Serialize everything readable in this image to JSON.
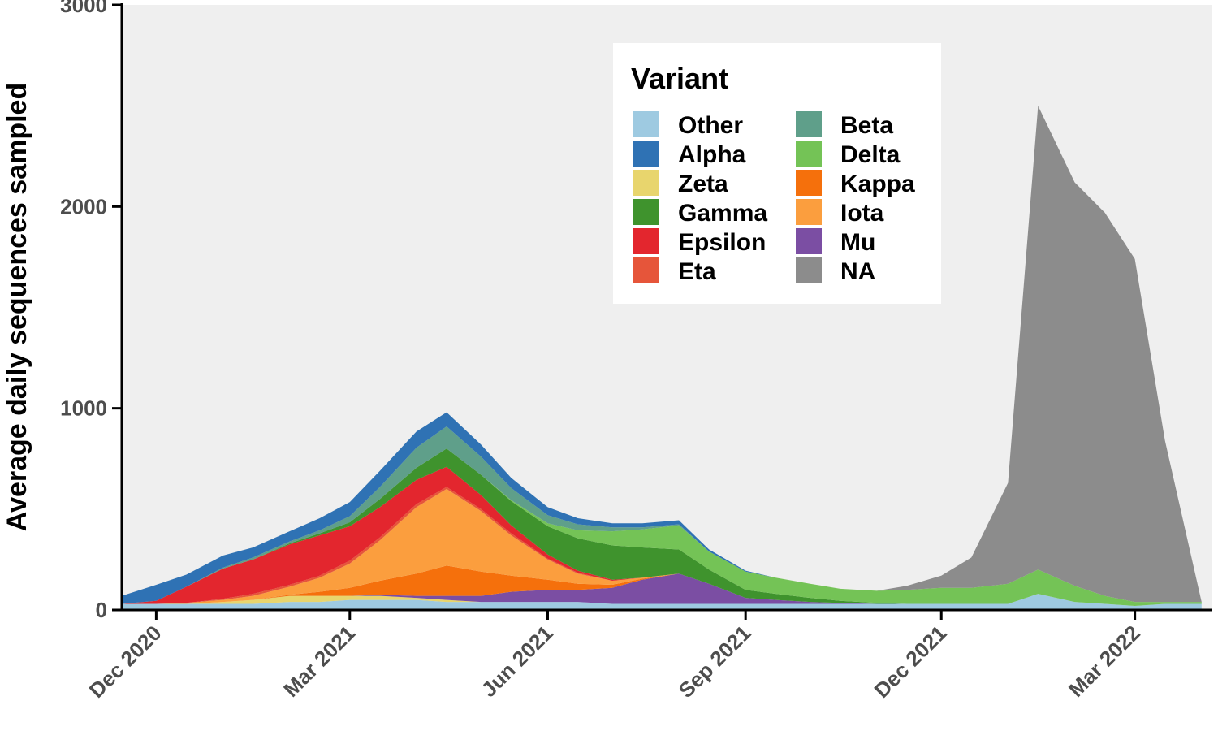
{
  "chart_data": {
    "type": "area",
    "stacked": true,
    "title": "",
    "xlabel": "",
    "ylabel": "Average daily sequences sampled",
    "ylim": [
      0,
      3000
    ],
    "xlim": [
      "2020-11-15",
      "2022-04-06"
    ],
    "grid": false,
    "background": "#efefef",
    "legend": {
      "title": "Variant",
      "position": "top-center",
      "columns": 2
    },
    "y_ticks": [
      {
        "value": 0,
        "label": "0"
      },
      {
        "value": 1000,
        "label": "1000"
      },
      {
        "value": 2000,
        "label": "2000"
      },
      {
        "value": 3000,
        "label": "3000"
      }
    ],
    "x_ticks": [
      {
        "date": "2020-12-01",
        "label": "Dec 2020"
      },
      {
        "date": "2021-03-01",
        "label": "Mar 2021"
      },
      {
        "date": "2021-06-01",
        "label": "Jun 2021"
      },
      {
        "date": "2021-09-01",
        "label": "Sep 2021"
      },
      {
        "date": "2021-12-01",
        "label": "Dec 2021"
      },
      {
        "date": "2022-03-01",
        "label": "Mar 2022"
      }
    ],
    "x": [
      "2020-11-15",
      "2020-12-01",
      "2020-12-15",
      "2021-01-01",
      "2021-01-15",
      "2021-02-01",
      "2021-02-15",
      "2021-03-01",
      "2021-03-15",
      "2021-04-01",
      "2021-04-15",
      "2021-05-01",
      "2021-05-15",
      "2021-06-01",
      "2021-06-15",
      "2021-07-01",
      "2021-07-15",
      "2021-08-01",
      "2021-08-15",
      "2021-09-01",
      "2021-09-15",
      "2021-10-01",
      "2021-10-15",
      "2021-11-01",
      "2021-11-15",
      "2021-12-01",
      "2021-12-15",
      "2022-01-01",
      "2022-01-15",
      "2022-02-01",
      "2022-02-15",
      "2022-03-01",
      "2022-03-15",
      "2022-04-01"
    ],
    "series": [
      {
        "name": "Other",
        "color": "#9ecae1",
        "values": [
          30,
          30,
          30,
          30,
          30,
          40,
          40,
          50,
          50,
          50,
          40,
          40,
          40,
          40,
          40,
          30,
          30,
          30,
          30,
          30,
          30,
          30,
          30,
          30,
          30,
          30,
          30,
          30,
          80,
          40,
          30,
          20,
          30,
          30
        ]
      },
      {
        "name": "Zeta",
        "color": "#e8d56d",
        "values": [
          0,
          0,
          0,
          10,
          20,
          30,
          30,
          20,
          20,
          10,
          10,
          0,
          0,
          0,
          0,
          0,
          0,
          0,
          0,
          0,
          0,
          0,
          0,
          0,
          0,
          0,
          0,
          0,
          0,
          0,
          0,
          0,
          0,
          0
        ]
      },
      {
        "name": "Mu",
        "color": "#7b4ea3",
        "values": [
          0,
          0,
          0,
          0,
          0,
          0,
          0,
          0,
          5,
          10,
          20,
          30,
          50,
          60,
          60,
          80,
          120,
          150,
          100,
          30,
          20,
          10,
          5,
          0,
          0,
          0,
          0,
          0,
          0,
          0,
          0,
          0,
          0,
          0
        ]
      },
      {
        "name": "Kappa",
        "color": "#f5700c",
        "values": [
          0,
          0,
          0,
          0,
          0,
          5,
          20,
          40,
          70,
          110,
          150,
          120,
          80,
          50,
          30,
          15,
          5,
          0,
          0,
          0,
          0,
          0,
          0,
          0,
          0,
          0,
          0,
          0,
          0,
          0,
          0,
          0,
          0,
          0
        ]
      },
      {
        "name": "Iota",
        "color": "#fb9e3e",
        "values": [
          0,
          0,
          5,
          10,
          20,
          40,
          70,
          120,
          200,
          330,
          380,
          300,
          200,
          100,
          50,
          20,
          5,
          0,
          0,
          0,
          0,
          0,
          0,
          0,
          0,
          0,
          0,
          0,
          0,
          0,
          0,
          0,
          0,
          0
        ]
      },
      {
        "name": "Eta",
        "color": "#e6553a",
        "values": [
          0,
          0,
          0,
          5,
          10,
          10,
          10,
          15,
          15,
          15,
          10,
          10,
          10,
          5,
          5,
          0,
          0,
          0,
          0,
          0,
          0,
          0,
          0,
          0,
          0,
          0,
          0,
          0,
          0,
          0,
          0,
          0,
          0,
          0
        ]
      },
      {
        "name": "Epsilon",
        "color": "#e3262e",
        "values": [
          0,
          15,
          80,
          150,
          170,
          200,
          200,
          170,
          150,
          120,
          100,
          70,
          40,
          20,
          10,
          5,
          0,
          0,
          0,
          0,
          0,
          0,
          0,
          0,
          0,
          0,
          0,
          0,
          0,
          0,
          0,
          0,
          0,
          0
        ]
      },
      {
        "name": "Gamma",
        "color": "#3f932d",
        "values": [
          0,
          0,
          0,
          0,
          0,
          5,
          10,
          20,
          40,
          60,
          90,
          100,
          120,
          140,
          160,
          170,
          150,
          120,
          70,
          40,
          30,
          20,
          10,
          5,
          0,
          0,
          0,
          0,
          0,
          0,
          0,
          0,
          0,
          0
        ]
      },
      {
        "name": "Delta",
        "color": "#74c356",
        "values": [
          0,
          0,
          0,
          0,
          0,
          0,
          0,
          0,
          0,
          0,
          0,
          0,
          5,
          15,
          40,
          70,
          90,
          120,
          90,
          90,
          80,
          70,
          60,
          60,
          70,
          80,
          80,
          100,
          120,
          80,
          40,
          20,
          10,
          10
        ]
      },
      {
        "name": "Beta",
        "color": "#5f9f8a",
        "values": [
          0,
          0,
          0,
          5,
          10,
          10,
          15,
          30,
          60,
          100,
          110,
          90,
          60,
          40,
          30,
          20,
          10,
          5,
          0,
          0,
          0,
          0,
          0,
          0,
          0,
          0,
          0,
          0,
          0,
          0,
          0,
          0,
          0,
          0
        ]
      },
      {
        "name": "Alpha",
        "color": "#2f72b4",
        "values": [
          40,
          80,
          60,
          60,
          50,
          50,
          60,
          70,
          80,
          80,
          70,
          60,
          50,
          40,
          30,
          20,
          20,
          20,
          10,
          5,
          0,
          0,
          0,
          0,
          0,
          0,
          0,
          0,
          0,
          0,
          0,
          0,
          0,
          0
        ]
      },
      {
        "name": "NA",
        "color": "#8c8c8c",
        "values": [
          0,
          0,
          0,
          0,
          0,
          0,
          0,
          0,
          0,
          0,
          0,
          0,
          0,
          0,
          0,
          0,
          0,
          0,
          0,
          0,
          0,
          0,
          0,
          0,
          20,
          60,
          150,
          500,
          2300,
          2000,
          1900,
          1700,
          800,
          0
        ]
      }
    ]
  },
  "legend_order": [
    "Other",
    "Alpha",
    "Zeta",
    "Gamma",
    "Epsilon",
    "Eta",
    "Beta",
    "Delta",
    "Kappa",
    "Iota",
    "Mu",
    "NA"
  ]
}
